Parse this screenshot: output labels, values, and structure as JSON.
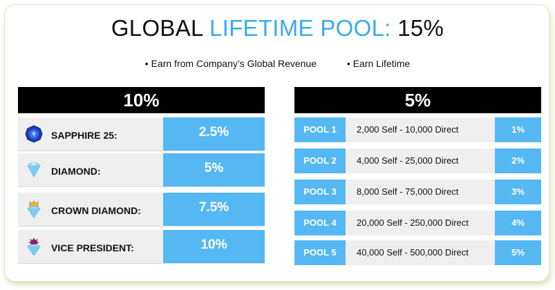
{
  "title": {
    "part1": "GLOBAL",
    "part2": "LIFETIME POOL:",
    "part3": "15%"
  },
  "bullets": [
    "• Earn from Company’s Global Revenue",
    "• Earn Lifetime"
  ],
  "left_panel": {
    "header": "10%",
    "rows": [
      {
        "icon": "sapphire-gem-icon",
        "label": "SAPPHIRE 25:",
        "value": "2.5%"
      },
      {
        "icon": "diamond-icon",
        "label": "DIAMOND:",
        "value": "5%"
      },
      {
        "icon": "crown-diamond-icon",
        "label": "CROWN DIAMOND:",
        "value": "7.5%"
      },
      {
        "icon": "star-diamond-icon",
        "label": "VICE PRESIDENT:",
        "value": "10%"
      }
    ]
  },
  "right_panel": {
    "header": "5%",
    "rows": [
      {
        "pool": "POOL 1",
        "desc": "2,000 Self - 10,000 Direct",
        "pct": "1%"
      },
      {
        "pool": "POOL 2",
        "desc": "4,000 Self - 25,000 Direct",
        "pct": "2%"
      },
      {
        "pool": "POOL 3",
        "desc": "8,000 Self - 75,000 Direct",
        "pct": "3%"
      },
      {
        "pool": "POOL 4",
        "desc": "20,000 Self - 250,000 Direct",
        "pct": "4%"
      },
      {
        "pool": "POOL 5",
        "desc": "40,000 Self - 500,000 Direct",
        "pct": "5%"
      }
    ]
  },
  "colors": {
    "accent": "#3aa9ee",
    "cell": "#55b8f2",
    "header": "#000000"
  }
}
